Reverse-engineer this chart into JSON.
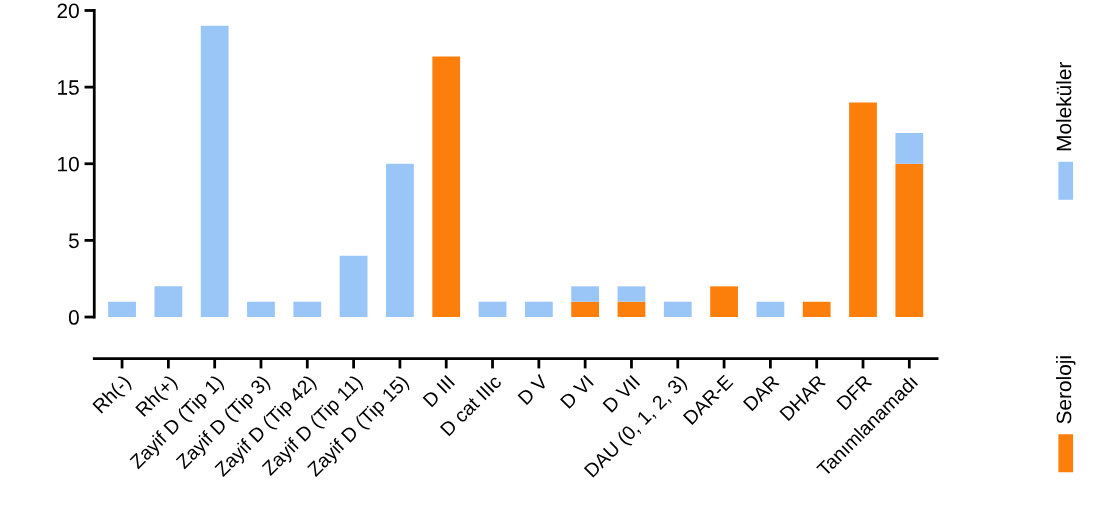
{
  "chart_data": {
    "type": "bar",
    "stacked": true,
    "categories": [
      "Rh(-)",
      "Rh(+)",
      "Zayif D (Tip 1)",
      "Zayif D (Tip 3)",
      "Zayif D (Tip 42)",
      "Zayif D (Tip 11)",
      "Zayif D (Tip 15)",
      "D III",
      "D cat IIIc",
      "D V",
      "D VI",
      "D VII",
      "DAU (0, 1, 2, 3)",
      "DAR-E",
      "DAR",
      "DHAR",
      "DFR",
      "Tanımlanamadı"
    ],
    "series": [
      {
        "name": "Seroloji",
        "color": "#fd7f0b",
        "values": [
          null,
          null,
          null,
          null,
          null,
          null,
          null,
          17,
          null,
          null,
          1,
          1,
          null,
          2,
          null,
          1,
          14,
          10
        ]
      },
      {
        "name": "Moleküler",
        "color": "#99c5f7",
        "values": [
          1,
          2,
          19,
          1,
          1,
          4,
          10,
          null,
          1,
          1,
          1,
          1,
          1,
          null,
          1,
          null,
          null,
          2
        ]
      }
    ],
    "ylim": [
      0,
      20
    ],
    "yticks": [
      0,
      5,
      10,
      15,
      20
    ],
    "grid": false,
    "legend": "right"
  }
}
